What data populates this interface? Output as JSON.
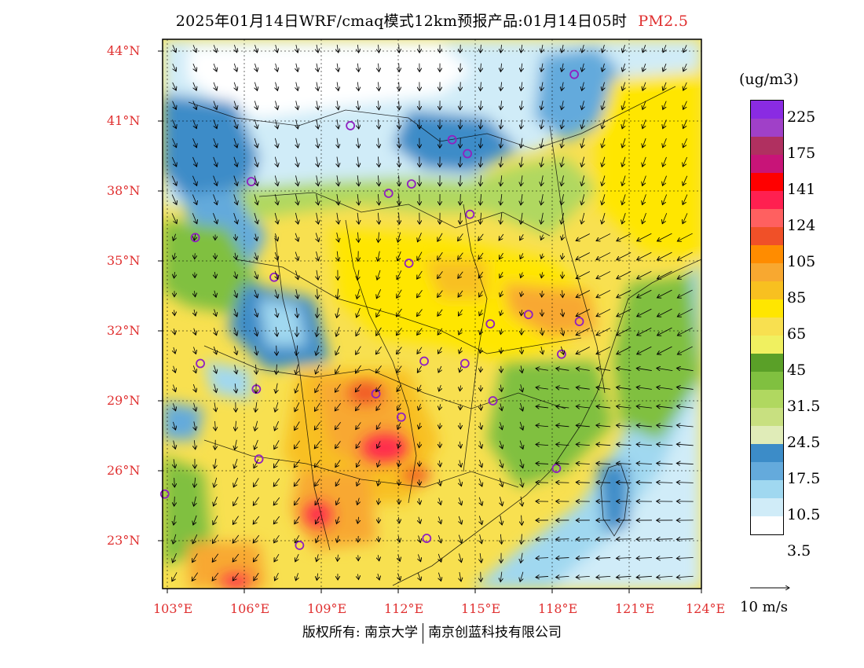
{
  "title": {
    "main": "2025年01月14日WRF/cmaq模式12km预报产品:01月14日05时",
    "variable": "PM2.5"
  },
  "axes": {
    "lat_labels": [
      "44°N",
      "41°N",
      "38°N",
      "35°N",
      "32°N",
      "29°N",
      "26°N",
      "23°N"
    ],
    "lon_labels": [
      "103°E",
      "106°E",
      "109°E",
      "112°E",
      "115°E",
      "118°E",
      "121°E",
      "124°E"
    ],
    "lat_values": [
      44,
      41,
      38,
      35,
      32,
      29,
      26,
      23
    ],
    "lon_values": [
      103,
      106,
      109,
      112,
      115,
      118,
      121,
      124
    ],
    "lat_range": [
      21,
      44.5
    ],
    "lon_range": [
      102.8,
      124
    ]
  },
  "colorbar": {
    "unit": "(ug/m3)",
    "colors": [
      "#8a2be2",
      "#a040c8",
      "#b03060",
      "#c81478",
      "#ff0000",
      "#ff2050",
      "#ff6060",
      "#f05028",
      "#ff8c00",
      "#f8a830",
      "#f8c020",
      "#ffe600",
      "#f8e050",
      "#f0f060",
      "#5aa028",
      "#80c040",
      "#b0d860",
      "#c8e080",
      "#e0ecb8",
      "#3c8cc8",
      "#64aadc",
      "#a0d8f0",
      "#d0ecf8",
      "#ffffff"
    ],
    "labels": [
      "225",
      "175",
      "141",
      "124",
      "105",
      "85",
      "65",
      "45",
      "31.5",
      "24.5",
      "17.5",
      "10.5",
      "3.5"
    ]
  },
  "wind_reference": {
    "label": "10 m/s"
  },
  "cities": [
    {
      "lon": 119.0,
      "lat": 43.0
    },
    {
      "lon": 110.2,
      "lat": 40.8
    },
    {
      "lon": 114.2,
      "lat": 40.2
    },
    {
      "lon": 114.8,
      "lat": 39.6
    },
    {
      "lon": 106.3,
      "lat": 38.4
    },
    {
      "lon": 111.7,
      "lat": 37.9
    },
    {
      "lon": 112.6,
      "lat": 38.3
    },
    {
      "lon": 114.9,
      "lat": 37.0
    },
    {
      "lon": 104.1,
      "lat": 36.0
    },
    {
      "lon": 112.5,
      "lat": 34.9
    },
    {
      "lon": 107.2,
      "lat": 34.3
    },
    {
      "lon": 117.2,
      "lat": 32.7
    },
    {
      "lon": 119.2,
      "lat": 32.4
    },
    {
      "lon": 115.7,
      "lat": 32.3
    },
    {
      "lon": 118.5,
      "lat": 31.0
    },
    {
      "lon": 113.1,
      "lat": 30.7
    },
    {
      "lon": 114.7,
      "lat": 30.6
    },
    {
      "lon": 104.3,
      "lat": 30.6
    },
    {
      "lon": 106.5,
      "lat": 29.5
    },
    {
      "lon": 111.2,
      "lat": 29.3
    },
    {
      "lon": 112.2,
      "lat": 28.3
    },
    {
      "lon": 115.8,
      "lat": 29.0
    },
    {
      "lon": 106.6,
      "lat": 26.5
    },
    {
      "lon": 118.3,
      "lat": 26.1
    },
    {
      "lon": 102.9,
      "lat": 25.0
    },
    {
      "lon": 108.2,
      "lat": 22.8
    },
    {
      "lon": 113.2,
      "lat": 23.1
    }
  ],
  "footer": {
    "left": "版权所有: 南京大学",
    "right": "南京创蓝科技有限公司"
  }
}
